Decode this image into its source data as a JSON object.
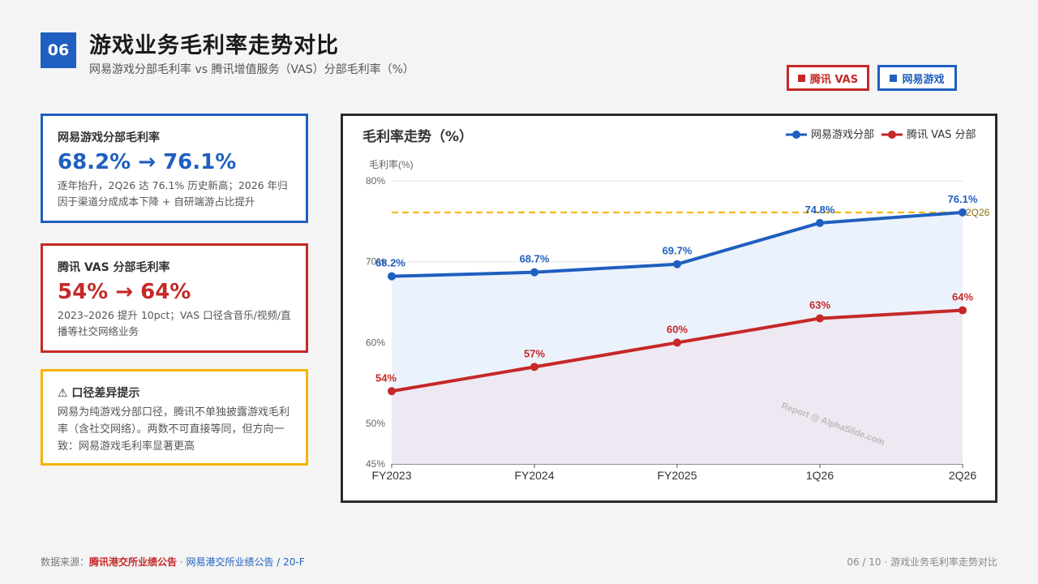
{
  "header": {
    "badge": "06",
    "title": "游戏业务毛利率走势对比",
    "subtitle": "网易游戏分部毛利率 vs 腾讯增值服务（VAS）分部毛利率（%）",
    "legend_buttons": [
      {
        "label": "腾讯 VAS",
        "color": "#c62828"
      },
      {
        "label": "网易游戏",
        "color": "#1f5fbf"
      }
    ]
  },
  "cards": [
    {
      "title": "网易游戏分部毛利率",
      "big": "68.2% → 76.1%",
      "desc": "逐年抬升，2Q26 达 76.1% 历史新高；2026 年归因于渠道分成成本下降 + 自研端游占比提升",
      "color": "#1f5fbf"
    },
    {
      "title": "腾讯 VAS 分部毛利率",
      "big": "54% → 64%",
      "desc": "2023–2026 提升 10pct；VAS 口径含音乐/视频/直播等社交网络业务",
      "color": "#c62828"
    },
    {
      "title": "⚠ 口径差异提示",
      "desc": "网易为纯游戏分部口径，腾讯不单独披露游戏毛利率（含社交网络）。两数不可直接等同，但方向一致：网易游戏毛利率显著更高",
      "color": "#f5b301"
    }
  ],
  "chart_data": {
    "type": "line",
    "title": "毛利率走势（%）",
    "ylabel": "毛利率(%)",
    "categories": [
      "FY2023",
      "FY2024",
      "FY2025",
      "1Q26",
      "2Q26"
    ],
    "ylim": [
      45,
      80
    ],
    "yticks": [
      45,
      50,
      60,
      70,
      80
    ],
    "grid": true,
    "legend_position": "top-right",
    "series": [
      {
        "name": "网易游戏分部",
        "values": [
          68.2,
          68.7,
          69.7,
          74.8,
          76.1
        ],
        "labels": [
          "68.2%",
          "68.7%",
          "69.7%",
          "74.8%",
          "76.1%"
        ],
        "color": "#1f5fbf",
        "fill": "#e8f0fb"
      },
      {
        "name": "腾讯 VAS 分部",
        "values": [
          54,
          57,
          60,
          63,
          64
        ],
        "labels": [
          "54%",
          "57%",
          "60%",
          "63%",
          "64%"
        ],
        "color": "#c62828",
        "fill": "#ede6ee"
      }
    ],
    "reference_line": {
      "value": 76.1,
      "label": "2Q26",
      "color": "#f5b301"
    },
    "watermark": "Report @ AlphaSlide.com"
  },
  "footer": {
    "source_prefix": "数据来源：",
    "source_tencent": "腾讯港交所业绩公告",
    "separator": " · ",
    "source_netease": "网易港交所业绩公告 / 20-F",
    "page_info": "06 / 10 · 游戏业务毛利率走势对比"
  }
}
